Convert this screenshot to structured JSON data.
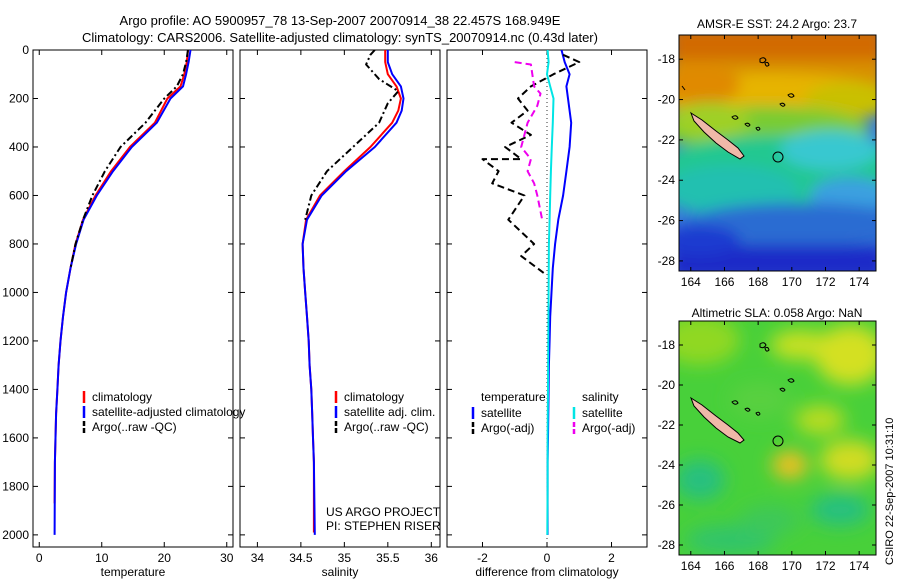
{
  "header": {
    "line1": "Argo profile: AO 5900957_78 13-Sep-2007 20070914_38 22.457S 168.949E",
    "line2": "Climatology: CARS2006. Satellite-adjusted climatology: synTS_20070914.nc (0.43d later)"
  },
  "chart_data": [
    {
      "type": "line",
      "panel": "temperature",
      "xlabel": "temperature",
      "ylabel": "",
      "xlim": [
        -1,
        31
      ],
      "ylim": [
        2050,
        0
      ],
      "xticks": [
        "0",
        "10",
        "20",
        "30"
      ],
      "xtick_values": [
        0,
        10,
        20,
        30
      ],
      "yticks": [
        "0",
        "200",
        "400",
        "600",
        "800",
        "1000",
        "1200",
        "1400",
        "1600",
        "1800",
        "2000"
      ],
      "ytick_values": [
        0,
        200,
        400,
        600,
        800,
        1000,
        1200,
        1400,
        1600,
        1800,
        2000
      ],
      "legend": [
        "climatology",
        "satellite-adjusted climatology",
        "Argo(..raw -QC)"
      ],
      "series": [
        {
          "name": "climatology",
          "color": "#ff0000",
          "style": "solid",
          "x": [
            23.8,
            23.6,
            23.2,
            22.6,
            20.5,
            18.5,
            14.5,
            11.5,
            9.0,
            7.0,
            5.8,
            5.0,
            4.3,
            3.8,
            3.4,
            3.1,
            2.9,
            2.7,
            2.6,
            2.5,
            2.45
          ],
          "y": [
            0,
            50,
            100,
            150,
            200,
            300,
            400,
            500,
            600,
            700,
            800,
            900,
            1000,
            1100,
            1200,
            1300,
            1400,
            1500,
            1600,
            1700,
            1870
          ]
        },
        {
          "name": "satellite-adjusted climatology",
          "color": "#0000ff",
          "style": "solid",
          "x": [
            24.2,
            23.9,
            23.5,
            23.0,
            21.0,
            18.8,
            14.8,
            11.8,
            9.2,
            7.1,
            5.9,
            5.0,
            4.3,
            3.8,
            3.4,
            3.1,
            2.9,
            2.7,
            2.6,
            2.5,
            2.45
          ],
          "y": [
            0,
            50,
            100,
            150,
            200,
            300,
            400,
            500,
            600,
            700,
            800,
            900,
            1000,
            1100,
            1200,
            1300,
            1400,
            1500,
            1600,
            1700,
            2000
          ]
        },
        {
          "name": "Argo(..raw -QC)",
          "color": "#000000",
          "style": "dashdot",
          "x": [
            23.8,
            23.5,
            23.0,
            22.0,
            20.0,
            17.0,
            13.0,
            10.5,
            8.5,
            7.0,
            5.8,
            5.0
          ],
          "y": [
            0,
            50,
            100,
            150,
            200,
            300,
            400,
            500,
            600,
            700,
            800,
            900
          ]
        }
      ]
    },
    {
      "type": "line",
      "panel": "salinity",
      "xlabel": "salinity",
      "ylabel": "",
      "xlim": [
        33.8,
        36.1
      ],
      "ylim": [
        2050,
        0
      ],
      "xticks": [
        "34",
        "34.5",
        "35",
        "35.5",
        "36"
      ],
      "xtick_values": [
        34,
        34.5,
        35,
        35.5,
        36
      ],
      "legend": [
        "climatology",
        "satellite adj. clim.",
        "Argo(..raw -QC)"
      ],
      "annotations": [
        "US ARGO PROJECT",
        "PI: STEPHEN RISER"
      ],
      "series": [
        {
          "name": "climatology",
          "color": "#ff0000",
          "style": "solid",
          "x": [
            35.47,
            35.47,
            35.5,
            35.6,
            35.65,
            35.62,
            35.55,
            35.3,
            35.0,
            34.72,
            34.56,
            34.52,
            34.53,
            34.55,
            34.57,
            34.59,
            34.6,
            34.62,
            34.63,
            34.64,
            34.65,
            34.65
          ],
          "y": [
            0,
            50,
            100,
            150,
            200,
            250,
            300,
            400,
            500,
            600,
            700,
            800,
            900,
            1000,
            1100,
            1200,
            1300,
            1400,
            1500,
            1600,
            1700,
            1990
          ]
        },
        {
          "name": "satellite adj. clim.",
          "color": "#0000ff",
          "style": "solid",
          "x": [
            35.5,
            35.5,
            35.55,
            35.65,
            35.68,
            35.66,
            35.6,
            35.35,
            35.02,
            34.74,
            34.57,
            34.52,
            34.53,
            34.55,
            34.57,
            34.59,
            34.6,
            34.62,
            34.63,
            34.64,
            34.65,
            34.66
          ],
          "y": [
            0,
            50,
            100,
            150,
            200,
            250,
            300,
            400,
            500,
            600,
            700,
            800,
            900,
            1000,
            1100,
            1200,
            1300,
            1400,
            1500,
            1600,
            1700,
            2000
          ]
        },
        {
          "name": "Argo(..raw -QC)",
          "color": "#000000",
          "style": "dashdot",
          "x": [
            35.35,
            35.3,
            35.25,
            35.4,
            35.62,
            35.5,
            35.4,
            35.1,
            34.8,
            34.62,
            34.55
          ],
          "y": [
            0,
            20,
            60,
            120,
            170,
            220,
            300,
            400,
            500,
            600,
            700
          ]
        }
      ]
    },
    {
      "type": "line",
      "panel": "difference",
      "xlabel": "difference from climatology",
      "ylabel": "",
      "xlim": [
        -3.1,
        3.1
      ],
      "ylim": [
        2050,
        0
      ],
      "xticks": [
        "-2",
        "0",
        "2"
      ],
      "xtick_values": [
        -2,
        0,
        2
      ],
      "legend_titles": [
        "temperature",
        "salinity"
      ],
      "legend": [
        "satellite",
        "Argo(-adj)",
        "satellite",
        "Argo(-adj)"
      ],
      "series": [
        {
          "name": "satellite",
          "group": "temperature",
          "color": "#0000ff",
          "style": "solid",
          "x": [
            0.45,
            0.55,
            0.7,
            0.6,
            0.65,
            0.75,
            0.7,
            0.6,
            0.5,
            0.35,
            0.25,
            0.18,
            0.14,
            0.1,
            0.08,
            0.06,
            0.05,
            0.04,
            0.03,
            0.02,
            0.02
          ],
          "y": [
            0,
            50,
            100,
            150,
            200,
            300,
            400,
            500,
            600,
            700,
            800,
            900,
            1000,
            1100,
            1200,
            1300,
            1400,
            1500,
            1600,
            1700,
            2000
          ]
        },
        {
          "name": "Argo(-adj)",
          "group": "temperature",
          "color": "#000000",
          "style": "dashed",
          "x": [
            0.5,
            1.0,
            0.2,
            -0.5,
            -0.9,
            -0.6,
            -1.1,
            -0.5,
            -1.3,
            -0.8,
            -2.0,
            -1.5,
            -1.7,
            -0.7,
            -1.2,
            -0.4,
            -0.8,
            -0.1
          ],
          "y": [
            20,
            50,
            100,
            150,
            200,
            250,
            300,
            350,
            400,
            450,
            450,
            500,
            550,
            600,
            700,
            800,
            850,
            920
          ]
        },
        {
          "name": "satellite",
          "group": "salinity",
          "color": "#00e5e5",
          "style": "solid",
          "x": [
            0.02,
            0.05,
            0.0,
            0.1,
            0.2,
            0.18,
            0.15,
            0.12,
            0.1,
            0.08,
            0.06,
            0.05,
            0.04,
            0.03,
            0.02,
            0.02,
            0.01
          ],
          "y": [
            0,
            50,
            100,
            150,
            200,
            300,
            400,
            500,
            600,
            700,
            800,
            1000,
            1200,
            1400,
            1600,
            1800,
            2000
          ]
        },
        {
          "name": "Argo(-adj)",
          "group": "salinity",
          "color": "#ee00ee",
          "style": "dashed",
          "x": [
            -1.0,
            -0.5,
            -0.4,
            -0.2,
            -0.3,
            -0.6,
            -0.8,
            -0.5,
            -0.6,
            -0.4,
            -0.3,
            -0.15
          ],
          "y": [
            50,
            60,
            150,
            180,
            230,
            300,
            400,
            450,
            500,
            550,
            600,
            700
          ]
        }
      ]
    },
    {
      "type": "heatmap",
      "panel": "sst_map",
      "title": "AMSR-E SST: 24.2 Argo: 23.7",
      "xticks": [
        "164",
        "166",
        "168",
        "170",
        "172",
        "174"
      ],
      "yticks": [
        "-18",
        "-20",
        "-22",
        "-24",
        "-26",
        "-28"
      ],
      "xlim": [
        163.3,
        175.0
      ],
      "ylim": [
        -28.5,
        -16.8
      ],
      "float_position": [
        168.949,
        -22.457
      ]
    },
    {
      "type": "heatmap",
      "panel": "sla_map",
      "title": "Altimetric SLA: 0.058 Argo: NaN",
      "xticks": [
        "164",
        "166",
        "168",
        "170",
        "172",
        "174"
      ],
      "yticks": [
        "-18",
        "-20",
        "-22",
        "-24",
        "-26",
        "-28"
      ],
      "xlim": [
        163.3,
        175.0
      ],
      "ylim": [
        -28.5,
        -16.8
      ],
      "float_position": [
        168.949,
        -22.457
      ]
    }
  ],
  "side_text": "CSIRO 22-Sep-2007 10:31:10"
}
